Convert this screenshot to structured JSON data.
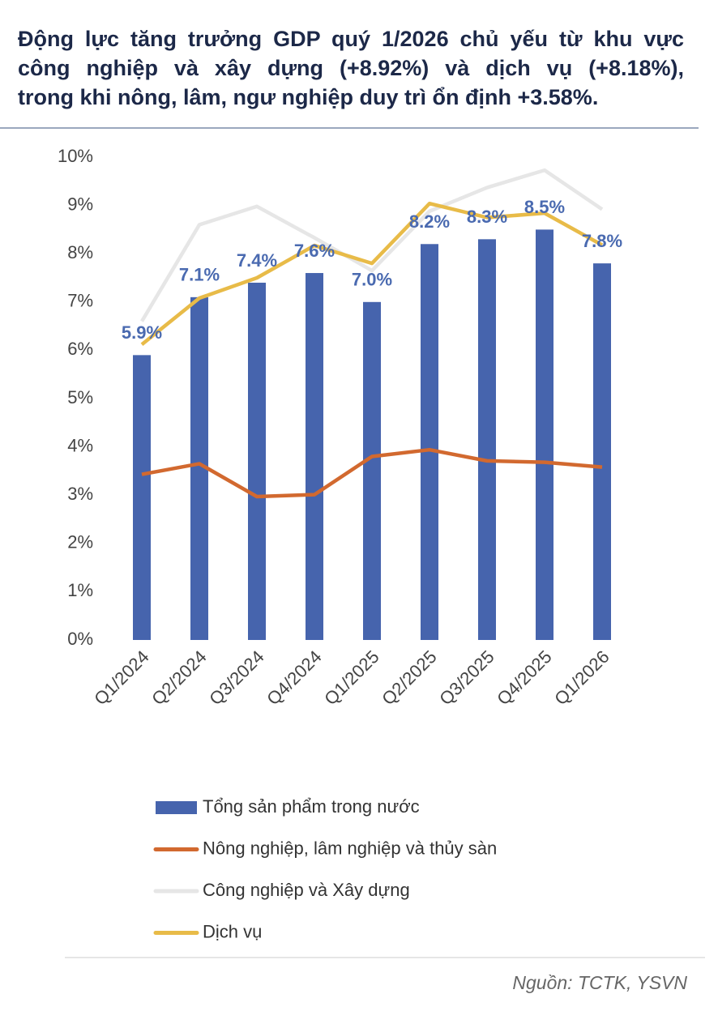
{
  "chart_data": {
    "type": "bar",
    "title": [
      "Động lực tăng trưởng GDP quý 1/2026 chủ yếu từ khu vực",
      "công nghiệp và xây dựng (+8.92%) và dịch vụ (+8.18%),",
      "trong khi nông, lâm, ngư nghiệp duy trì ổn định +3.58%."
    ],
    "categories": [
      "Q1/2024",
      "Q2/2024",
      "Q3/2024",
      "Q4/2024",
      "Q1/2025",
      "Q2/2025",
      "Q3/2025",
      "Q4/2025",
      "Q1/2026"
    ],
    "series": [
      {
        "name": "Tổng sản phẩm trong nước",
        "type": "bar",
        "color": "#4664ad",
        "values": [
          5.9,
          7.1,
          7.4,
          7.6,
          7.0,
          8.2,
          8.3,
          8.5,
          7.8
        ],
        "value_labels": [
          "5.9%",
          "7.1%",
          "7.4%",
          "7.6%",
          "7.0%",
          "8.2%",
          "8.3%",
          "8.5%",
          "7.8%"
        ]
      },
      {
        "name": "Nông nghiệp, lâm nghiệp và thủy sàn",
        "type": "line",
        "color": "#d2692f",
        "values": [
          3.43,
          3.65,
          2.97,
          3.01,
          3.8,
          3.94,
          3.71,
          3.68,
          3.58
        ]
      },
      {
        "name": "Công nghiệp và Xây dựng",
        "type": "line",
        "color": "#e6e6e6",
        "values": [
          6.6,
          8.6,
          8.98,
          8.33,
          7.65,
          8.88,
          9.37,
          9.73,
          8.92
        ]
      },
      {
        "name": "Dịch vụ",
        "type": "line",
        "color": "#e8bb48",
        "values": [
          6.12,
          7.08,
          7.5,
          8.17,
          7.8,
          9.04,
          8.75,
          8.84,
          8.18
        ]
      }
    ],
    "ylim": [
      0,
      10
    ],
    "yticks": [
      {
        "value": 0,
        "label": "0%"
      },
      {
        "value": 1,
        "label": "1%"
      },
      {
        "value": 2,
        "label": "2%"
      },
      {
        "value": 3,
        "label": "3%"
      },
      {
        "value": 4,
        "label": "4%"
      },
      {
        "value": 5,
        "label": "5%"
      },
      {
        "value": 6,
        "label": "6%"
      },
      {
        "value": 7,
        "label": "7%"
      },
      {
        "value": 8,
        "label": "8%"
      },
      {
        "value": 9,
        "label": "9%"
      },
      {
        "value": 10,
        "label": "10%"
      }
    ],
    "source": "Nguồn: TCTK, YSVN"
  }
}
